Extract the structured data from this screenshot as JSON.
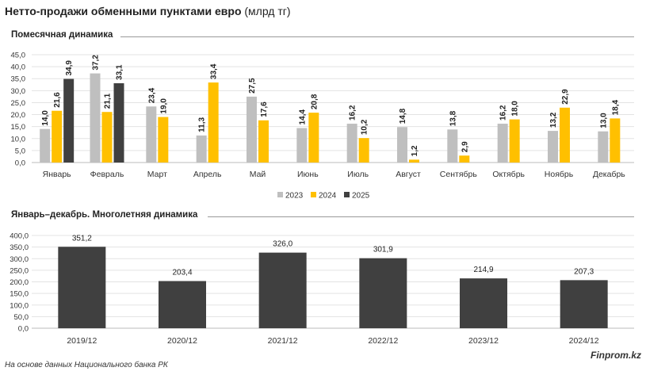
{
  "header": {
    "title_bold": "Нетто-продажи обменными пунктами евро",
    "title_unit": "(млрд тг)"
  },
  "chart_data": [
    {
      "type": "bar",
      "title": "Помесячная динамика",
      "categories": [
        "Январь",
        "Февраль",
        "Март",
        "Апрель",
        "Май",
        "Июнь",
        "Июль",
        "Август",
        "Сентябрь",
        "Октябрь",
        "Ноябрь",
        "Декабрь"
      ],
      "series": [
        {
          "name": "2023",
          "color": "#bfbfbf",
          "values": [
            14.0,
            37.2,
            23.4,
            11.3,
            27.5,
            14.4,
            16.2,
            14.8,
            13.8,
            16.2,
            13.2,
            13.0
          ]
        },
        {
          "name": "2024",
          "color": "#ffc000",
          "values": [
            21.6,
            21.1,
            19.0,
            33.4,
            17.6,
            20.8,
            10.2,
            1.2,
            2.9,
            18.0,
            22.9,
            18.4
          ]
        },
        {
          "name": "2025",
          "color": "#404040",
          "values": [
            34.9,
            33.1,
            null,
            null,
            null,
            null,
            null,
            null,
            null,
            null,
            null,
            null
          ]
        }
      ],
      "ylim": [
        0,
        45
      ],
      "yticks": [
        "0,0",
        "5,0",
        "10,0",
        "15,0",
        "20,0",
        "25,0",
        "30,0",
        "35,0",
        "40,0",
        "45,0"
      ],
      "legend_position": "bottom"
    },
    {
      "type": "bar",
      "title": "Январь–декабрь. Многолетняя динамика",
      "categories": [
        "2019/12",
        "2020/12",
        "2021/12",
        "2022/12",
        "2023/12",
        "2024/12"
      ],
      "values": [
        351.2,
        203.4,
        326.0,
        301.9,
        214.9,
        207.3
      ],
      "color": "#404040",
      "ylim": [
        0,
        400
      ],
      "yticks": [
        "0,0",
        "50,0",
        "100,0",
        "150,0",
        "200,0",
        "250,0",
        "300,0",
        "350,0",
        "400,0"
      ]
    }
  ],
  "footer": {
    "source": "На основе данных Национального банка РК",
    "brand": "Finprom.kz"
  }
}
